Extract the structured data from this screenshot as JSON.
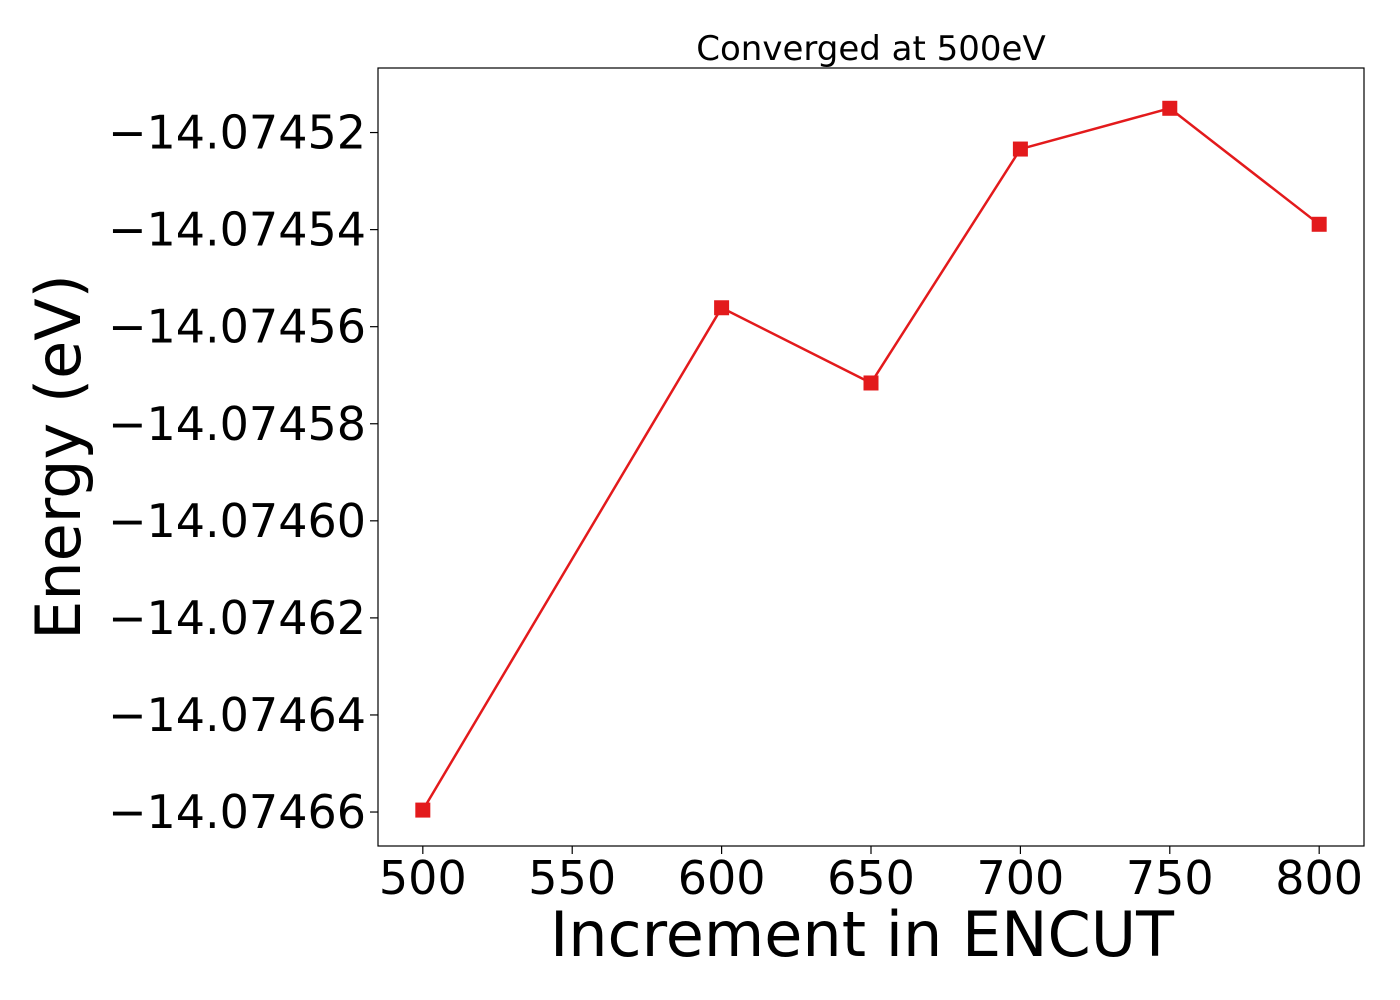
{
  "chart_data": {
    "type": "line",
    "title": "Converged at 500eV",
    "xlabel": "Increment in ENCUT",
    "ylabel": "Energy (eV)",
    "xlim": [
      485,
      815
    ],
    "ylim": [
      -14.074667,
      -14.0745067
    ],
    "xticks": [
      500,
      550,
      600,
      650,
      700,
      750,
      800
    ],
    "xtick_labels": [
      "500",
      "550",
      "600",
      "650",
      "700",
      "750",
      "800"
    ],
    "yticks": [
      -14.07452,
      -14.07454,
      -14.07456,
      -14.07458,
      -14.0746,
      -14.07462,
      -14.07464,
      -14.07466
    ],
    "ytick_labels": [
      "−14.07452",
      "−14.07454",
      "−14.07456",
      "−14.07458",
      "−14.07460",
      "−14.07462",
      "−14.07464",
      "−14.07466"
    ],
    "grid": false,
    "series": [
      {
        "color": "#e31a1c",
        "marker": "square",
        "x": [
          500,
          600,
          650,
          700,
          750,
          800
        ],
        "y": [
          -14.0746596,
          -14.0745561,
          -14.0745716,
          -14.0745234,
          -14.074515,
          -14.0745389
        ]
      }
    ]
  }
}
